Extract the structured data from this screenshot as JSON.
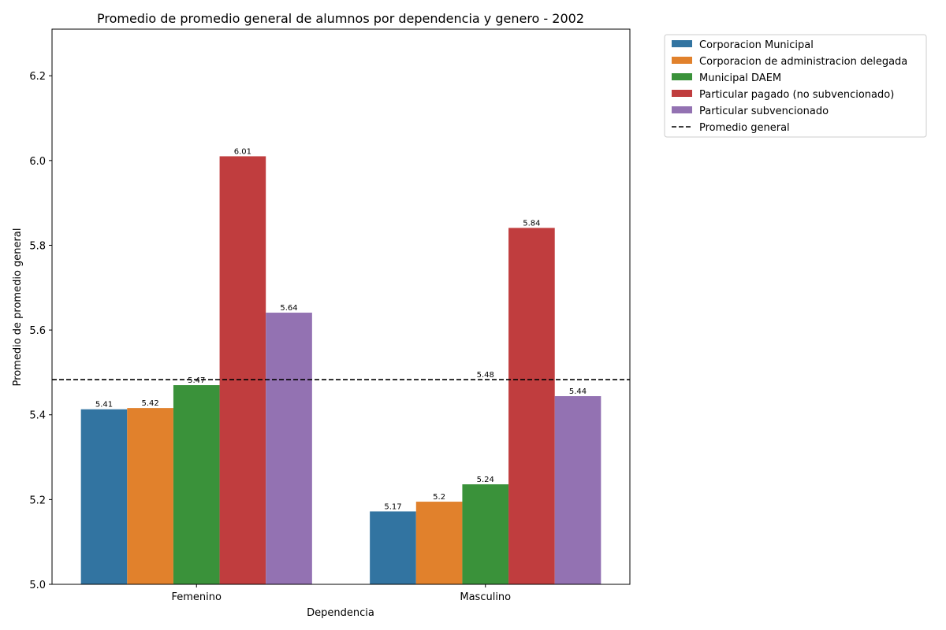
{
  "chart_data": {
    "type": "bar",
    "title": "Promedio de promedio general de alumnos por dependencia y genero - 2002",
    "xlabel": "Dependencia",
    "ylabel": "Promedio de promedio general",
    "categories": [
      "Femenino",
      "Masculino"
    ],
    "ylim": [
      5.0,
      6.31
    ],
    "yticks": [
      5.0,
      5.2,
      5.4,
      5.6,
      5.8,
      6.0,
      6.2
    ],
    "ytick_labels": [
      "5.0",
      "5.2",
      "5.4",
      "5.6",
      "5.8",
      "6.0",
      "6.2"
    ],
    "grid": false,
    "legend_position": "outside-top-right",
    "series": [
      {
        "name": "Corporacion Municipal",
        "color": "#3274a1",
        "values": [
          5.413,
          5.172
        ],
        "labels": [
          "5.41",
          "5.17"
        ]
      },
      {
        "name": "Corporacion de administracion delegada",
        "color": "#e1812c",
        "values": [
          5.416,
          5.195
        ],
        "labels": [
          "5.42",
          "5.2"
        ]
      },
      {
        "name": "Municipal DAEM",
        "color": "#3a923a",
        "values": [
          5.47,
          5.236
        ],
        "labels": [
          "5.47",
          "5.24"
        ]
      },
      {
        "name": "Particular pagado (no subvencionado)",
        "color": "#c03d3e",
        "values": [
          6.01,
          5.841
        ],
        "labels": [
          "6.01",
          "5.84"
        ]
      },
      {
        "name": "Particular subvencionado",
        "color": "#9372b2",
        "values": [
          5.641,
          5.444
        ],
        "labels": [
          "5.64",
          "5.44"
        ]
      }
    ],
    "reference_line": {
      "name": "Promedio general",
      "value": 5.483,
      "label": "5.48",
      "style": "dashed",
      "color": "#000000"
    }
  }
}
